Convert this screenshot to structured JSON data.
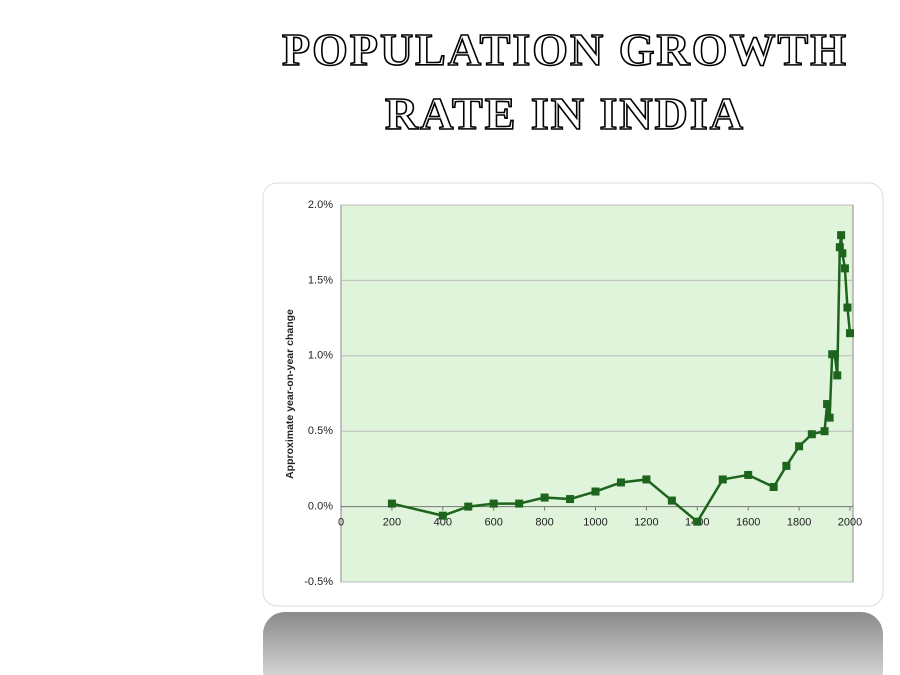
{
  "chart_data": {
    "type": "line",
    "title": "POPULATION GROWTH RATE IN INDIA",
    "y_label": "Approximate year-on-year change",
    "x": [
      200,
      400,
      500,
      600,
      700,
      800,
      900,
      1000,
      1100,
      1200,
      1300,
      1400,
      1500,
      1600,
      1700,
      1750,
      1800,
      1850,
      1900,
      1910,
      1920,
      1930,
      1940,
      1950,
      1960,
      1965,
      1970,
      1980,
      1990,
      2000
    ],
    "series": [
      {
        "color": "#1d641d",
        "values": [
          0.02,
          -0.06,
          0.0,
          0.02,
          0.02,
          0.06,
          0.05,
          0.1,
          0.16,
          0.18,
          0.04,
          -0.1,
          0.18,
          0.21,
          0.13,
          0.27,
          0.4,
          0.48,
          0.5,
          0.68,
          0.59,
          1.01,
          1.01,
          0.87,
          1.72,
          1.8,
          1.68,
          1.58,
          1.32,
          1.15
        ]
      }
    ],
    "xlim": [
      0,
      2000
    ],
    "xticks": [
      0,
      200,
      400,
      600,
      800,
      1000,
      1200,
      1400,
      1600,
      1800,
      2000
    ],
    "ylim": [
      -0.5,
      2.0
    ],
    "yticks": [
      {
        "value": -0.5,
        "label": "-0.5%"
      },
      {
        "value": 0,
        "label": "0.0%"
      },
      {
        "value": 0.5,
        "label": "0.5%"
      },
      {
        "value": 1.0,
        "label": "1.0%"
      },
      {
        "value": 1.5,
        "label": "1.5%"
      },
      {
        "value": 2.0,
        "label": "2.0%"
      }
    ],
    "grid": true,
    "plot_background": "#dff4da"
  }
}
